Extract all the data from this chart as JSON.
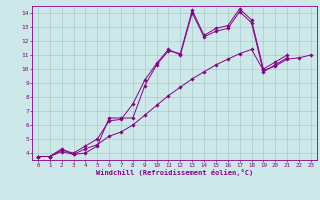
{
  "xlabel": "Windchill (Refroidissement éolien,°C)",
  "xlim": [
    -0.5,
    23.5
  ],
  "ylim": [
    3.5,
    14.5
  ],
  "xticks": [
    0,
    1,
    2,
    3,
    4,
    5,
    6,
    7,
    8,
    9,
    10,
    11,
    12,
    13,
    14,
    15,
    16,
    17,
    18,
    19,
    20,
    21,
    22,
    23
  ],
  "yticks": [
    4,
    5,
    6,
    7,
    8,
    9,
    10,
    11,
    12,
    13,
    14
  ],
  "bg_color": "#cce8e8",
  "line_color": "#880088",
  "grid_color": "#aacccc",
  "line1_x": [
    0,
    1,
    2,
    3,
    4,
    5,
    6,
    7,
    8,
    9,
    10,
    11,
    12,
    13,
    14,
    15,
    16,
    17,
    18,
    19,
    20,
    21
  ],
  "line1_y": [
    3.75,
    3.75,
    4.3,
    3.9,
    4.0,
    4.5,
    6.5,
    6.5,
    6.5,
    8.8,
    10.3,
    11.3,
    11.1,
    14.2,
    12.4,
    12.9,
    13.1,
    14.3,
    13.5,
    10.0,
    10.5,
    11.0
  ],
  "line2_x": [
    0,
    1,
    2,
    3,
    4,
    5,
    6,
    7,
    8,
    9,
    10,
    11,
    12,
    13,
    14,
    15,
    16,
    17,
    18,
    19,
    20,
    21
  ],
  "line2_y": [
    3.75,
    3.75,
    4.2,
    4.0,
    4.5,
    5.0,
    6.3,
    6.4,
    7.5,
    9.2,
    10.4,
    11.4,
    11.0,
    14.0,
    12.3,
    12.7,
    12.9,
    14.1,
    13.3,
    9.8,
    10.3,
    10.8
  ],
  "line3_x": [
    0,
    1,
    2,
    3,
    4,
    5,
    6,
    7,
    8,
    9,
    10,
    11,
    12,
    13,
    14,
    15,
    16,
    17,
    18,
    19,
    20,
    21,
    22,
    23
  ],
  "line3_y": [
    3.75,
    3.75,
    4.1,
    3.9,
    4.3,
    4.6,
    5.2,
    5.5,
    6.0,
    6.7,
    7.4,
    8.1,
    8.7,
    9.3,
    9.8,
    10.3,
    10.7,
    11.1,
    11.4,
    9.9,
    10.2,
    10.7,
    10.8,
    11.0
  ]
}
